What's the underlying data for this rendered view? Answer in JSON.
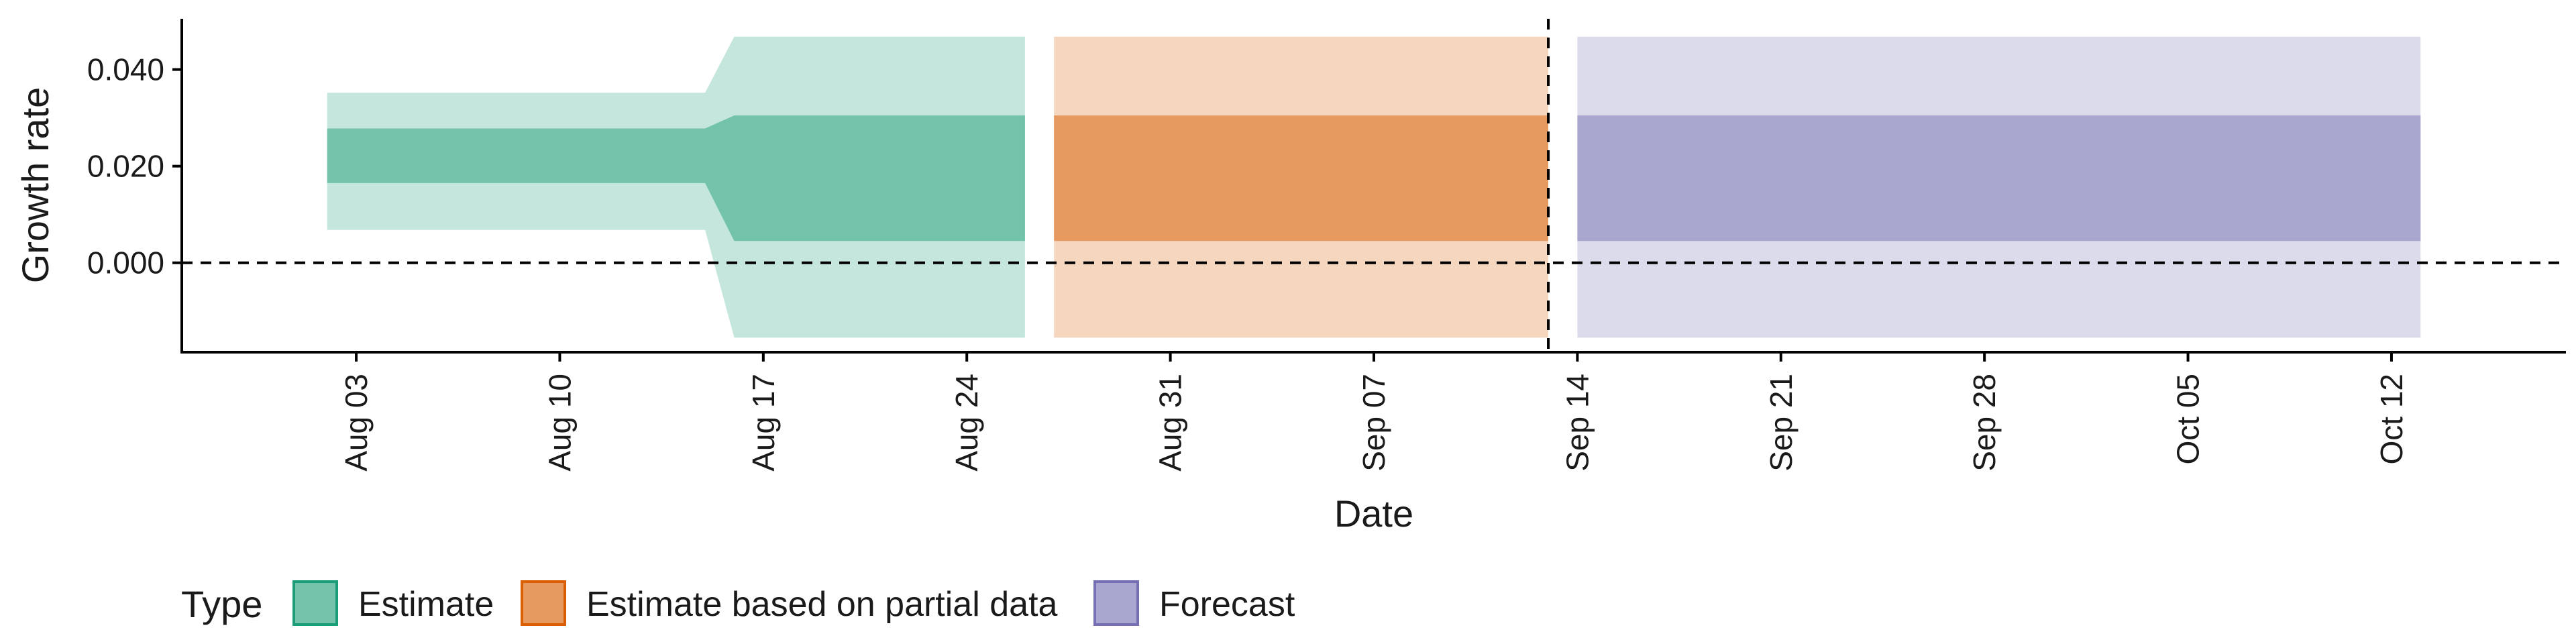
{
  "chart_data": {
    "type": "area",
    "xlabel": "Date",
    "ylabel": "Growth rate",
    "x_axis": {
      "type": "date",
      "range": [
        "2020-07-28",
        "2020-10-18"
      ],
      "ticks": [
        {
          "date": "2020-08-03",
          "label": "Aug 03"
        },
        {
          "date": "2020-08-10",
          "label": "Aug 10"
        },
        {
          "date": "2020-08-17",
          "label": "Aug 17"
        },
        {
          "date": "2020-08-24",
          "label": "Aug 24"
        },
        {
          "date": "2020-08-31",
          "label": "Aug 31"
        },
        {
          "date": "2020-09-07",
          "label": "Sep 07"
        },
        {
          "date": "2020-09-14",
          "label": "Sep 14"
        },
        {
          "date": "2020-09-21",
          "label": "Sep 21"
        },
        {
          "date": "2020-09-28",
          "label": "Sep 28"
        },
        {
          "date": "2020-10-05",
          "label": "Oct 05"
        },
        {
          "date": "2020-10-12",
          "label": "Oct 12"
        }
      ]
    },
    "y_axis": {
      "range": [
        -0.0185,
        0.0505
      ],
      "ticks": [
        {
          "value": 0.0,
          "label": "0.000"
        },
        {
          "value": 0.02,
          "label": "0.020"
        },
        {
          "value": 0.04,
          "label": "0.040"
        }
      ]
    },
    "reference_lines": {
      "horizontal_y": 0.0,
      "vertical_date": "2020-09-13"
    },
    "legend": {
      "title": "Type",
      "position": "bottom",
      "items": [
        {
          "label": "Estimate",
          "fill": "#72c3aa",
          "border": "#1b9e77"
        },
        {
          "label": "Estimate based on partial data",
          "fill": "#e69a60",
          "border": "#d95f02"
        },
        {
          "label": "Forecast",
          "fill": "#a9a6d0",
          "border": "#7570b3"
        }
      ]
    },
    "series": [
      {
        "name": "Estimate",
        "outer_color": "#c5e6dc",
        "inner_color": "#72c3aa",
        "points": [
          {
            "date": "2020-08-02",
            "outer_low": 0.0068,
            "outer_high": 0.0352,
            "inner_low": 0.0165,
            "inner_high": 0.0278
          },
          {
            "date": "2020-08-15",
            "outer_low": 0.0068,
            "outer_high": 0.0352,
            "inner_low": 0.0165,
            "inner_high": 0.0278
          },
          {
            "date": "2020-08-16",
            "outer_low": -0.0155,
            "outer_high": 0.0468,
            "inner_low": 0.0045,
            "inner_high": 0.0305
          },
          {
            "date": "2020-08-26",
            "outer_low": -0.0155,
            "outer_high": 0.0468,
            "inner_low": 0.0045,
            "inner_high": 0.0305
          }
        ]
      },
      {
        "name": "Estimate based on partial data",
        "outer_color": "#f5d6bf",
        "inner_color": "#e69a60",
        "points": [
          {
            "date": "2020-08-27",
            "outer_low": -0.0155,
            "outer_high": 0.0468,
            "inner_low": 0.0045,
            "inner_high": 0.0305
          },
          {
            "date": "2020-09-13",
            "outer_low": -0.0155,
            "outer_high": 0.0468,
            "inner_low": 0.0045,
            "inner_high": 0.0305
          }
        ]
      },
      {
        "name": "Forecast",
        "outer_color": "#dcdbec",
        "inner_color": "#a9a6d0",
        "points": [
          {
            "date": "2020-09-14",
            "outer_low": -0.0155,
            "outer_high": 0.0468,
            "inner_low": 0.0045,
            "inner_high": 0.0305
          },
          {
            "date": "2020-10-13",
            "outer_low": -0.0155,
            "outer_high": 0.0468,
            "inner_low": 0.0045,
            "inner_high": 0.0305
          }
        ]
      }
    ]
  }
}
